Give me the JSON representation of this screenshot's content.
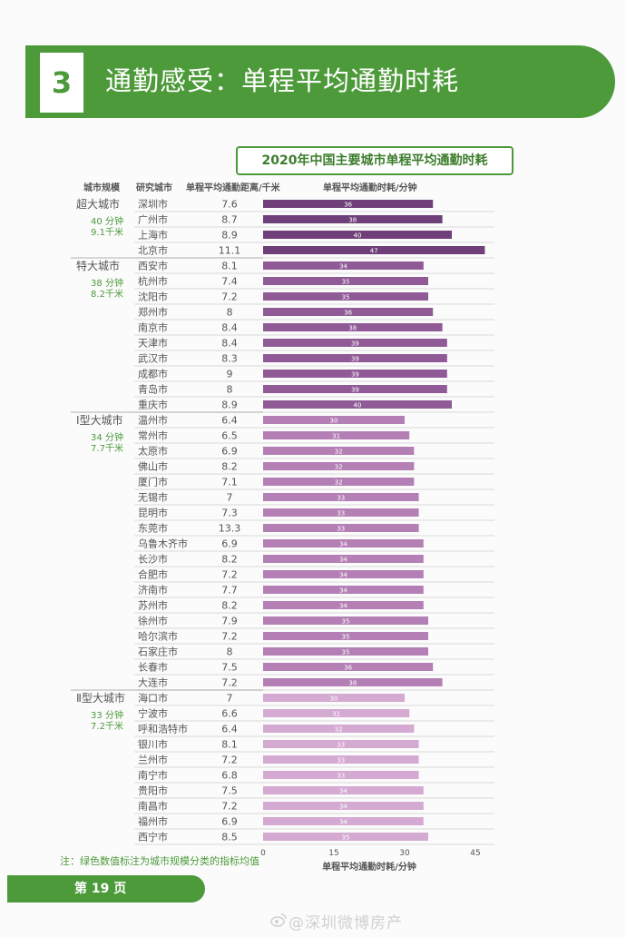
{
  "header": {
    "section_number": "3",
    "title": "通勤感受：单程平均通勤时耗"
  },
  "chart_title": "2020年中国主要城市单程平均通勤时耗",
  "columns": {
    "tier": "城市规模",
    "city": "研究城市",
    "distance": "单程平均通勤距离/千米",
    "time": "单程平均通勤时耗/分钟"
  },
  "chart_data": {
    "type": "bar",
    "orientation": "horizontal",
    "title": "2020年中国主要城市单程平均通勤时耗",
    "xlabel": "单程平均通勤时耗/分钟",
    "xlim": [
      0,
      45
    ],
    "xticks": [
      0,
      15,
      30,
      45
    ],
    "groups": [
      {
        "tier": "超大城市",
        "avg_time": "40 分钟",
        "avg_dist": "9.1千米",
        "color": "#6e3f78",
        "rows": [
          {
            "city": "深圳市",
            "distance": "7.6",
            "time": 36
          },
          {
            "city": "广州市",
            "distance": "8.7",
            "time": 38
          },
          {
            "city": "上海市",
            "distance": "8.9",
            "time": 40
          },
          {
            "city": "北京市",
            "distance": "11.1",
            "time": 47
          }
        ]
      },
      {
        "tier": "特大城市",
        "avg_time": "38 分钟",
        "avg_dist": "8.2千米",
        "color": "#8f5a96",
        "rows": [
          {
            "city": "西安市",
            "distance": "8.1",
            "time": 34
          },
          {
            "city": "杭州市",
            "distance": "7.4",
            "time": 35
          },
          {
            "city": "沈阳市",
            "distance": "7.2",
            "time": 35
          },
          {
            "city": "郑州市",
            "distance": "8",
            "time": 36
          },
          {
            "city": "南京市",
            "distance": "8.4",
            "time": 38
          },
          {
            "city": "天津市",
            "distance": "8.4",
            "time": 39
          },
          {
            "city": "武汉市",
            "distance": "8.3",
            "time": 39
          },
          {
            "city": "成都市",
            "distance": "9",
            "time": 39
          },
          {
            "city": "青岛市",
            "distance": "8",
            "time": 39
          },
          {
            "city": "重庆市",
            "distance": "8.9",
            "time": 40
          }
        ]
      },
      {
        "tier": "Ⅰ型大城市",
        "avg_time": "34 分钟",
        "avg_dist": "7.7千米",
        "color": "#b47fb5",
        "rows": [
          {
            "city": "温州市",
            "distance": "6.4",
            "time": 30
          },
          {
            "city": "常州市",
            "distance": "6.5",
            "time": 31
          },
          {
            "city": "太原市",
            "distance": "6.9",
            "time": 32
          },
          {
            "city": "佛山市",
            "distance": "8.2",
            "time": 32
          },
          {
            "city": "厦门市",
            "distance": "7.1",
            "time": 32
          },
          {
            "city": "无锡市",
            "distance": "7",
            "time": 33
          },
          {
            "city": "昆明市",
            "distance": "7.3",
            "time": 33
          },
          {
            "city": "东莞市",
            "distance": "13.3",
            "time": 33
          },
          {
            "city": "乌鲁木齐市",
            "distance": "6.9",
            "time": 34
          },
          {
            "city": "长沙市",
            "distance": "8.2",
            "time": 34
          },
          {
            "city": "合肥市",
            "distance": "7.2",
            "time": 34
          },
          {
            "city": "济南市",
            "distance": "7.7",
            "time": 34
          },
          {
            "city": "苏州市",
            "distance": "8.2",
            "time": 34
          },
          {
            "city": "徐州市",
            "distance": "7.9",
            "time": 35
          },
          {
            "city": "哈尔滨市",
            "distance": "7.2",
            "time": 35
          },
          {
            "city": "石家庄市",
            "distance": "8",
            "time": 35
          },
          {
            "city": "长春市",
            "distance": "7.5",
            "time": 36
          },
          {
            "city": "大连市",
            "distance": "7.2",
            "time": 38
          }
        ]
      },
      {
        "tier": "Ⅱ型大城市",
        "avg_time": "33 分钟",
        "avg_dist": "7.2千米",
        "color": "#d4a9d2",
        "rows": [
          {
            "city": "海口市",
            "distance": "7",
            "time": 30
          },
          {
            "city": "宁波市",
            "distance": "6.6",
            "time": 31
          },
          {
            "city": "呼和浩特市",
            "distance": "6.4",
            "time": 32
          },
          {
            "city": "银川市",
            "distance": "8.1",
            "time": 33
          },
          {
            "city": "兰州市",
            "distance": "7.2",
            "time": 33
          },
          {
            "city": "南宁市",
            "distance": "6.8",
            "time": 33
          },
          {
            "city": "贵阳市",
            "distance": "7.5",
            "time": 34
          },
          {
            "city": "南昌市",
            "distance": "7.2",
            "time": 34
          },
          {
            "city": "福州市",
            "distance": "6.9",
            "time": 34
          },
          {
            "city": "西宁市",
            "distance": "8.5",
            "time": 35
          }
        ]
      }
    ]
  },
  "note": "注：绿色数值标注为城市规模分类的指标均值",
  "footer": {
    "page": "第 19 页"
  },
  "watermark": "@深圳微博房产",
  "colors": {
    "brand_green": "#4c9a3a"
  }
}
